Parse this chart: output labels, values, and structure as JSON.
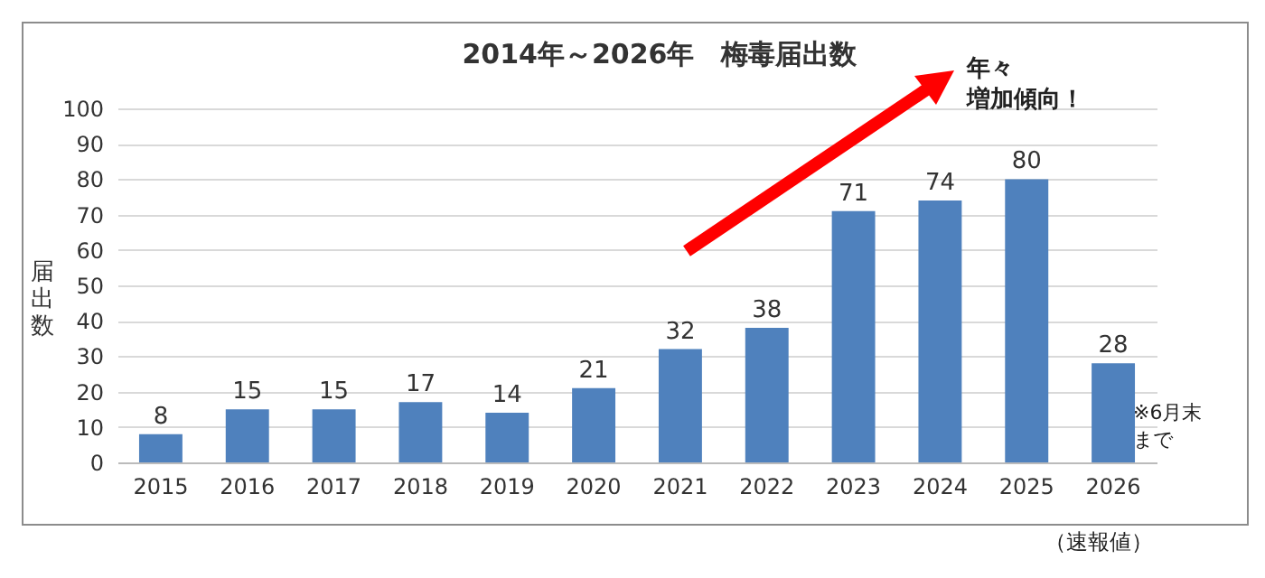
{
  "chart_data": {
    "type": "bar",
    "title": "2014年～2026年　梅毒届出数",
    "ylabel": "届出数",
    "categories": [
      "2015",
      "2016",
      "2017",
      "2018",
      "2019",
      "2020",
      "2021",
      "2022",
      "2023",
      "2024",
      "2025",
      "2026"
    ],
    "values": [
      8,
      15,
      15,
      17,
      14,
      21,
      32,
      38,
      71,
      74,
      80,
      28
    ],
    "color": "#4f81bd",
    "ylim": [
      0,
      100
    ],
    "yticks": [
      0,
      10,
      20,
      30,
      40,
      50,
      60,
      70,
      80,
      90,
      100
    ],
    "grid": "y",
    "data_labels": true,
    "annotations": [
      "年々増加傾向！",
      "※6月末まで",
      "（速報値）"
    ]
  }
}
